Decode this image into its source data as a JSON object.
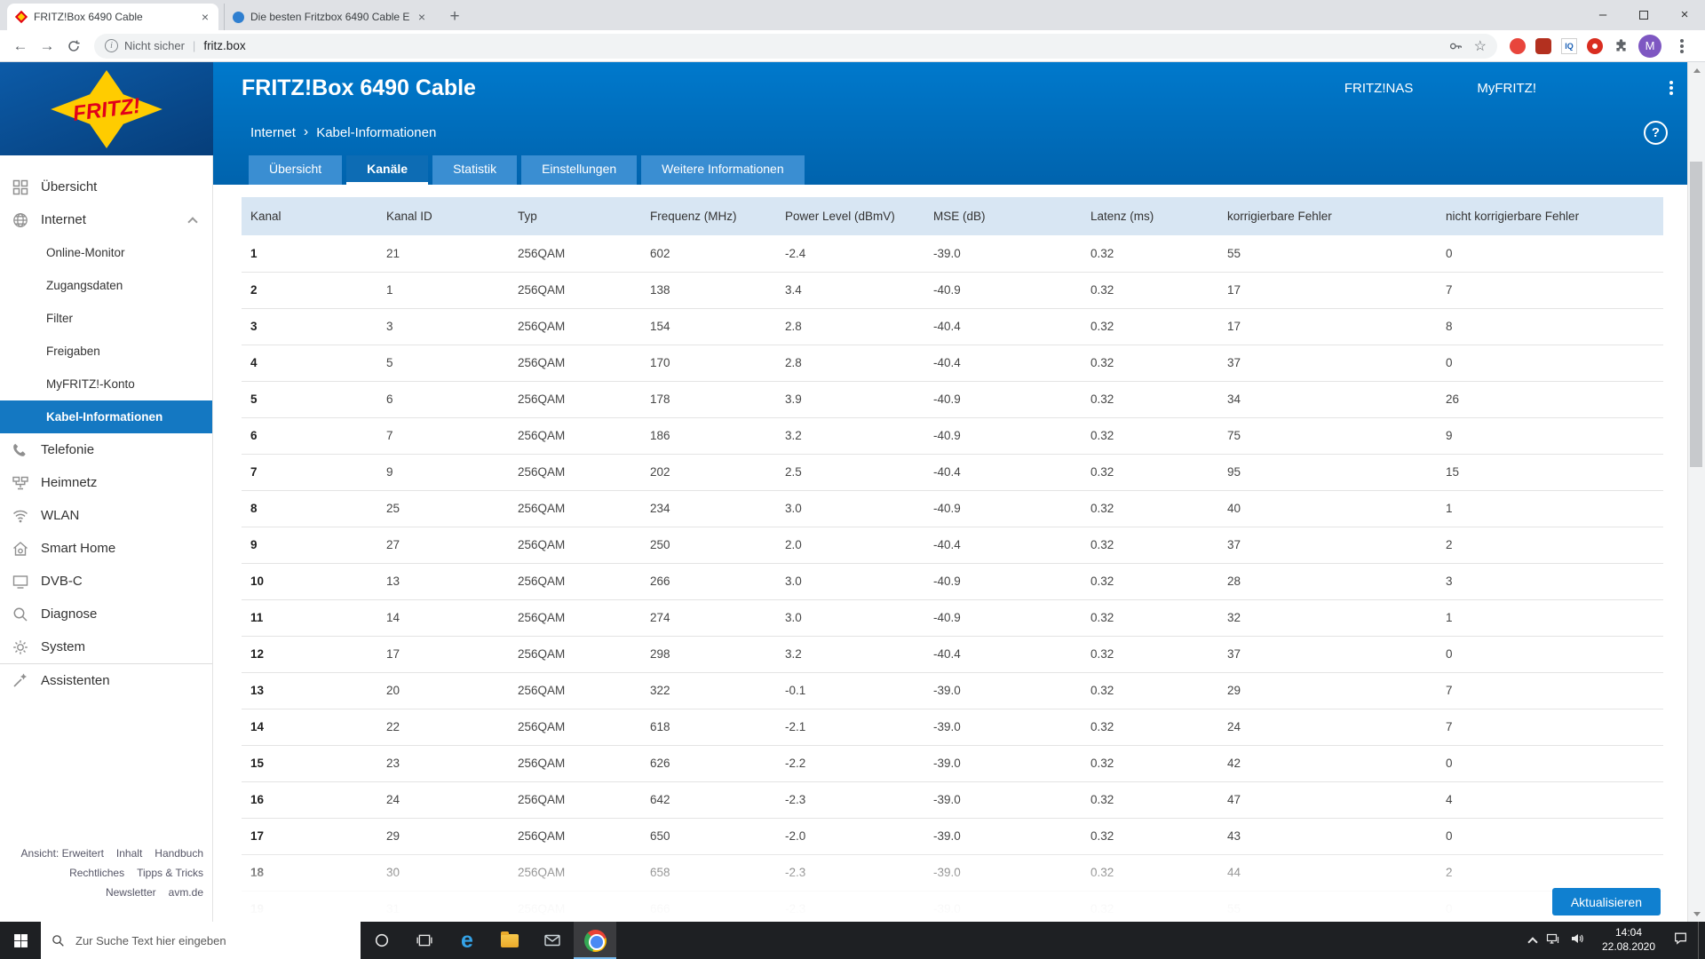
{
  "browser": {
    "tabs": [
      {
        "title": "FRITZ!Box 6490 Cable"
      },
      {
        "title": "Die besten Fritzbox 6490 Cable E"
      }
    ],
    "security_label": "Nicht sicher",
    "url": "fritz.box",
    "profile_letter": "M"
  },
  "app": {
    "logo_text": "FRITZ!",
    "title": "FRITZ!Box 6490 Cable",
    "nav_links": [
      "FRITZ!NAS",
      "MyFRITZ!"
    ],
    "breadcrumb": [
      "Internet",
      "Kabel-Informationen"
    ],
    "help_glyph": "?",
    "tabs": [
      {
        "label": "Übersicht",
        "active": false
      },
      {
        "label": "Kanäle",
        "active": true
      },
      {
        "label": "Statistik",
        "active": false
      },
      {
        "label": "Einstellungen",
        "active": false
      },
      {
        "label": "Weitere Informationen",
        "active": false
      }
    ],
    "refresh_button": "Aktualisieren"
  },
  "sidebar": {
    "items": [
      {
        "label": "Übersicht",
        "icon": "overview-grid-icon"
      },
      {
        "label": "Internet",
        "icon": "globe-icon",
        "expanded": true,
        "children": [
          {
            "label": "Online-Monitor"
          },
          {
            "label": "Zugangsdaten"
          },
          {
            "label": "Filter"
          },
          {
            "label": "Freigaben"
          },
          {
            "label": "MyFRITZ!-Konto"
          },
          {
            "label": "Kabel-Informationen",
            "active": true
          }
        ]
      },
      {
        "label": "Telefonie",
        "icon": "phone-icon"
      },
      {
        "label": "Heimnetz",
        "icon": "home-network-icon"
      },
      {
        "label": "WLAN",
        "icon": "wifi-icon"
      },
      {
        "label": "Smart Home",
        "icon": "smart-home-icon"
      },
      {
        "label": "DVB-C",
        "icon": "tv-icon"
      },
      {
        "label": "Diagnose",
        "icon": "diagnose-icon"
      },
      {
        "label": "System",
        "icon": "system-gear-icon"
      },
      {
        "label": "Assistenten",
        "icon": "assistant-wand-icon",
        "separated": true
      }
    ],
    "footer_rows": [
      [
        "Ansicht: Erweitert",
        "Inhalt",
        "Handbuch"
      ],
      [
        "Rechtliches",
        "Tipps & Tricks"
      ],
      [
        "Newsletter",
        "avm.de"
      ]
    ]
  },
  "table": {
    "columns": [
      "Kanal",
      "Kanal ID",
      "Typ",
      "Frequenz (MHz)",
      "Power Level (dBmV)",
      "MSE (dB)",
      "Latenz (ms)",
      "korrigierbare Fehler",
      "nicht korrigierbare Fehler"
    ],
    "rows": [
      [
        "1",
        "21",
        "256QAM",
        "602",
        "-2.4",
        "-39.0",
        "0.32",
        "55",
        "0"
      ],
      [
        "2",
        "1",
        "256QAM",
        "138",
        "3.4",
        "-40.9",
        "0.32",
        "17",
        "7"
      ],
      [
        "3",
        "3",
        "256QAM",
        "154",
        "2.8",
        "-40.4",
        "0.32",
        "17",
        "8"
      ],
      [
        "4",
        "5",
        "256QAM",
        "170",
        "2.8",
        "-40.4",
        "0.32",
        "37",
        "0"
      ],
      [
        "5",
        "6",
        "256QAM",
        "178",
        "3.9",
        "-40.9",
        "0.32",
        "34",
        "26"
      ],
      [
        "6",
        "7",
        "256QAM",
        "186",
        "3.2",
        "-40.9",
        "0.32",
        "75",
        "9"
      ],
      [
        "7",
        "9",
        "256QAM",
        "202",
        "2.5",
        "-40.4",
        "0.32",
        "95",
        "15"
      ],
      [
        "8",
        "25",
        "256QAM",
        "234",
        "3.0",
        "-40.9",
        "0.32",
        "40",
        "1"
      ],
      [
        "9",
        "27",
        "256QAM",
        "250",
        "2.0",
        "-40.4",
        "0.32",
        "37",
        "2"
      ],
      [
        "10",
        "13",
        "256QAM",
        "266",
        "3.0",
        "-40.9",
        "0.32",
        "28",
        "3"
      ],
      [
        "11",
        "14",
        "256QAM",
        "274",
        "3.0",
        "-40.9",
        "0.32",
        "32",
        "1"
      ],
      [
        "12",
        "17",
        "256QAM",
        "298",
        "3.2",
        "-40.4",
        "0.32",
        "37",
        "0"
      ],
      [
        "13",
        "20",
        "256QAM",
        "322",
        "-0.1",
        "-39.0",
        "0.32",
        "29",
        "7"
      ],
      [
        "14",
        "22",
        "256QAM",
        "618",
        "-2.1",
        "-39.0",
        "0.32",
        "24",
        "7"
      ],
      [
        "15",
        "23",
        "256QAM",
        "626",
        "-2.2",
        "-39.0",
        "0.32",
        "42",
        "0"
      ],
      [
        "16",
        "24",
        "256QAM",
        "642",
        "-2.3",
        "-39.0",
        "0.32",
        "47",
        "4"
      ],
      [
        "17",
        "29",
        "256QAM",
        "650",
        "-2.0",
        "-39.0",
        "0.32",
        "43",
        "0"
      ],
      [
        "18",
        "30",
        "256QAM",
        "658",
        "-2.3",
        "-39.0",
        "0.32",
        "44",
        "2"
      ],
      [
        "19",
        "31",
        "256QAM",
        "666",
        "-2.3",
        "-39.0",
        "0.32",
        "55",
        "0"
      ]
    ]
  },
  "taskbar": {
    "search_placeholder": "Zur Suche Text hier eingeben",
    "time": "14:04",
    "date": "22.08.2020"
  },
  "colors": {
    "header_blue": "#0072c6",
    "header_blue_dark": "#0063ad",
    "logo_panel_blue": "#0a4c8c",
    "fritz_yellow": "#ffcc00",
    "fritz_red": "#e2001a",
    "active_nav_blue": "#1478c2",
    "table_header_bg": "#d8e6f3",
    "button_blue": "#1080d0"
  }
}
